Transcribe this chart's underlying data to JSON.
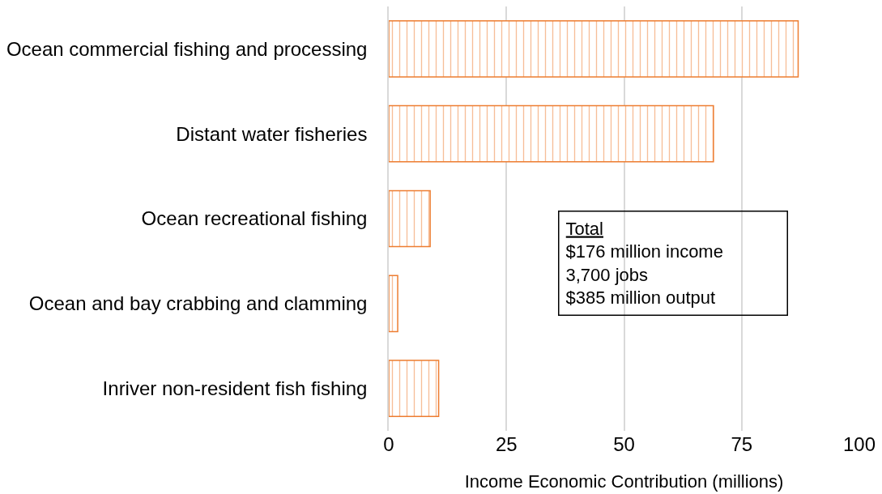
{
  "chart_data": {
    "type": "bar",
    "orientation": "horizontal",
    "xlabel": "Income Economic Contribution (millions)",
    "categories": [
      "Ocean commercial fishing and processing",
      "Distant water fisheries",
      "Ocean recreational fishing",
      "Ocean and bay crabbing and clamming",
      "Inriver non-resident fish fishing"
    ],
    "series": [
      {
        "color": "#ed7d31",
        "values": [
          87,
          69,
          8.8,
          1.9,
          10.6
        ]
      }
    ],
    "xlim": [
      0,
      100
    ],
    "xticks": [
      0,
      25,
      50,
      75,
      100
    ],
    "grid": "x",
    "annotations": [
      "Total\n$176 million income\n3,700 jobs\n$385 million output"
    ]
  }
}
